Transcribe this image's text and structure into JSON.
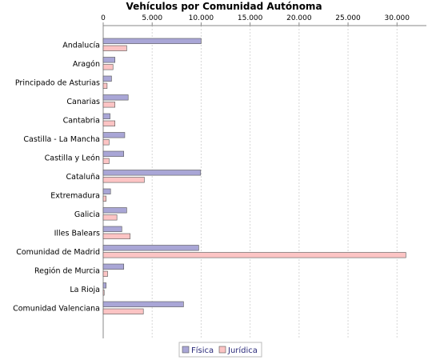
{
  "chart_data": {
    "type": "bar",
    "orientation": "horizontal",
    "title": "Vehículos por Comunidad Autónoma",
    "xlabel": "",
    "ylabel": "",
    "xlim": [
      0,
      33000
    ],
    "x_ticks": [
      0,
      5000,
      10000,
      15000,
      20000,
      25000,
      30000
    ],
    "x_tick_labels": [
      "0",
      "5.000",
      "10.000",
      "15.000",
      "20.000",
      "25.000",
      "30.000"
    ],
    "x_axis_position": "top",
    "grid": "vertical-dashed",
    "legend_position": "bottom",
    "categories": [
      "Andalucía",
      "Aragón",
      "Principado de Asturias",
      "Canarias",
      "Cantabria",
      "Castilla - La Mancha",
      "Castilla y León",
      "Cataluña",
      "Extremadura",
      "Galicia",
      "Illes Balears",
      "Comunidad de Madrid",
      "Región de Murcia",
      "La Rioja",
      "Comunidad Valenciana"
    ],
    "series": [
      {
        "name": "Física",
        "color": "#a9a6d6",
        "values": [
          10000,
          1200,
          850,
          2550,
          700,
          2200,
          2100,
          9950,
          750,
          2400,
          1900,
          9750,
          2100,
          300,
          8200
        ]
      },
      {
        "name": "Jurídica",
        "color": "#fcc4c4",
        "values": [
          2400,
          1000,
          400,
          1200,
          1200,
          600,
          600,
          4200,
          300,
          1400,
          2750,
          30900,
          450,
          100,
          4100
        ]
      }
    ]
  }
}
